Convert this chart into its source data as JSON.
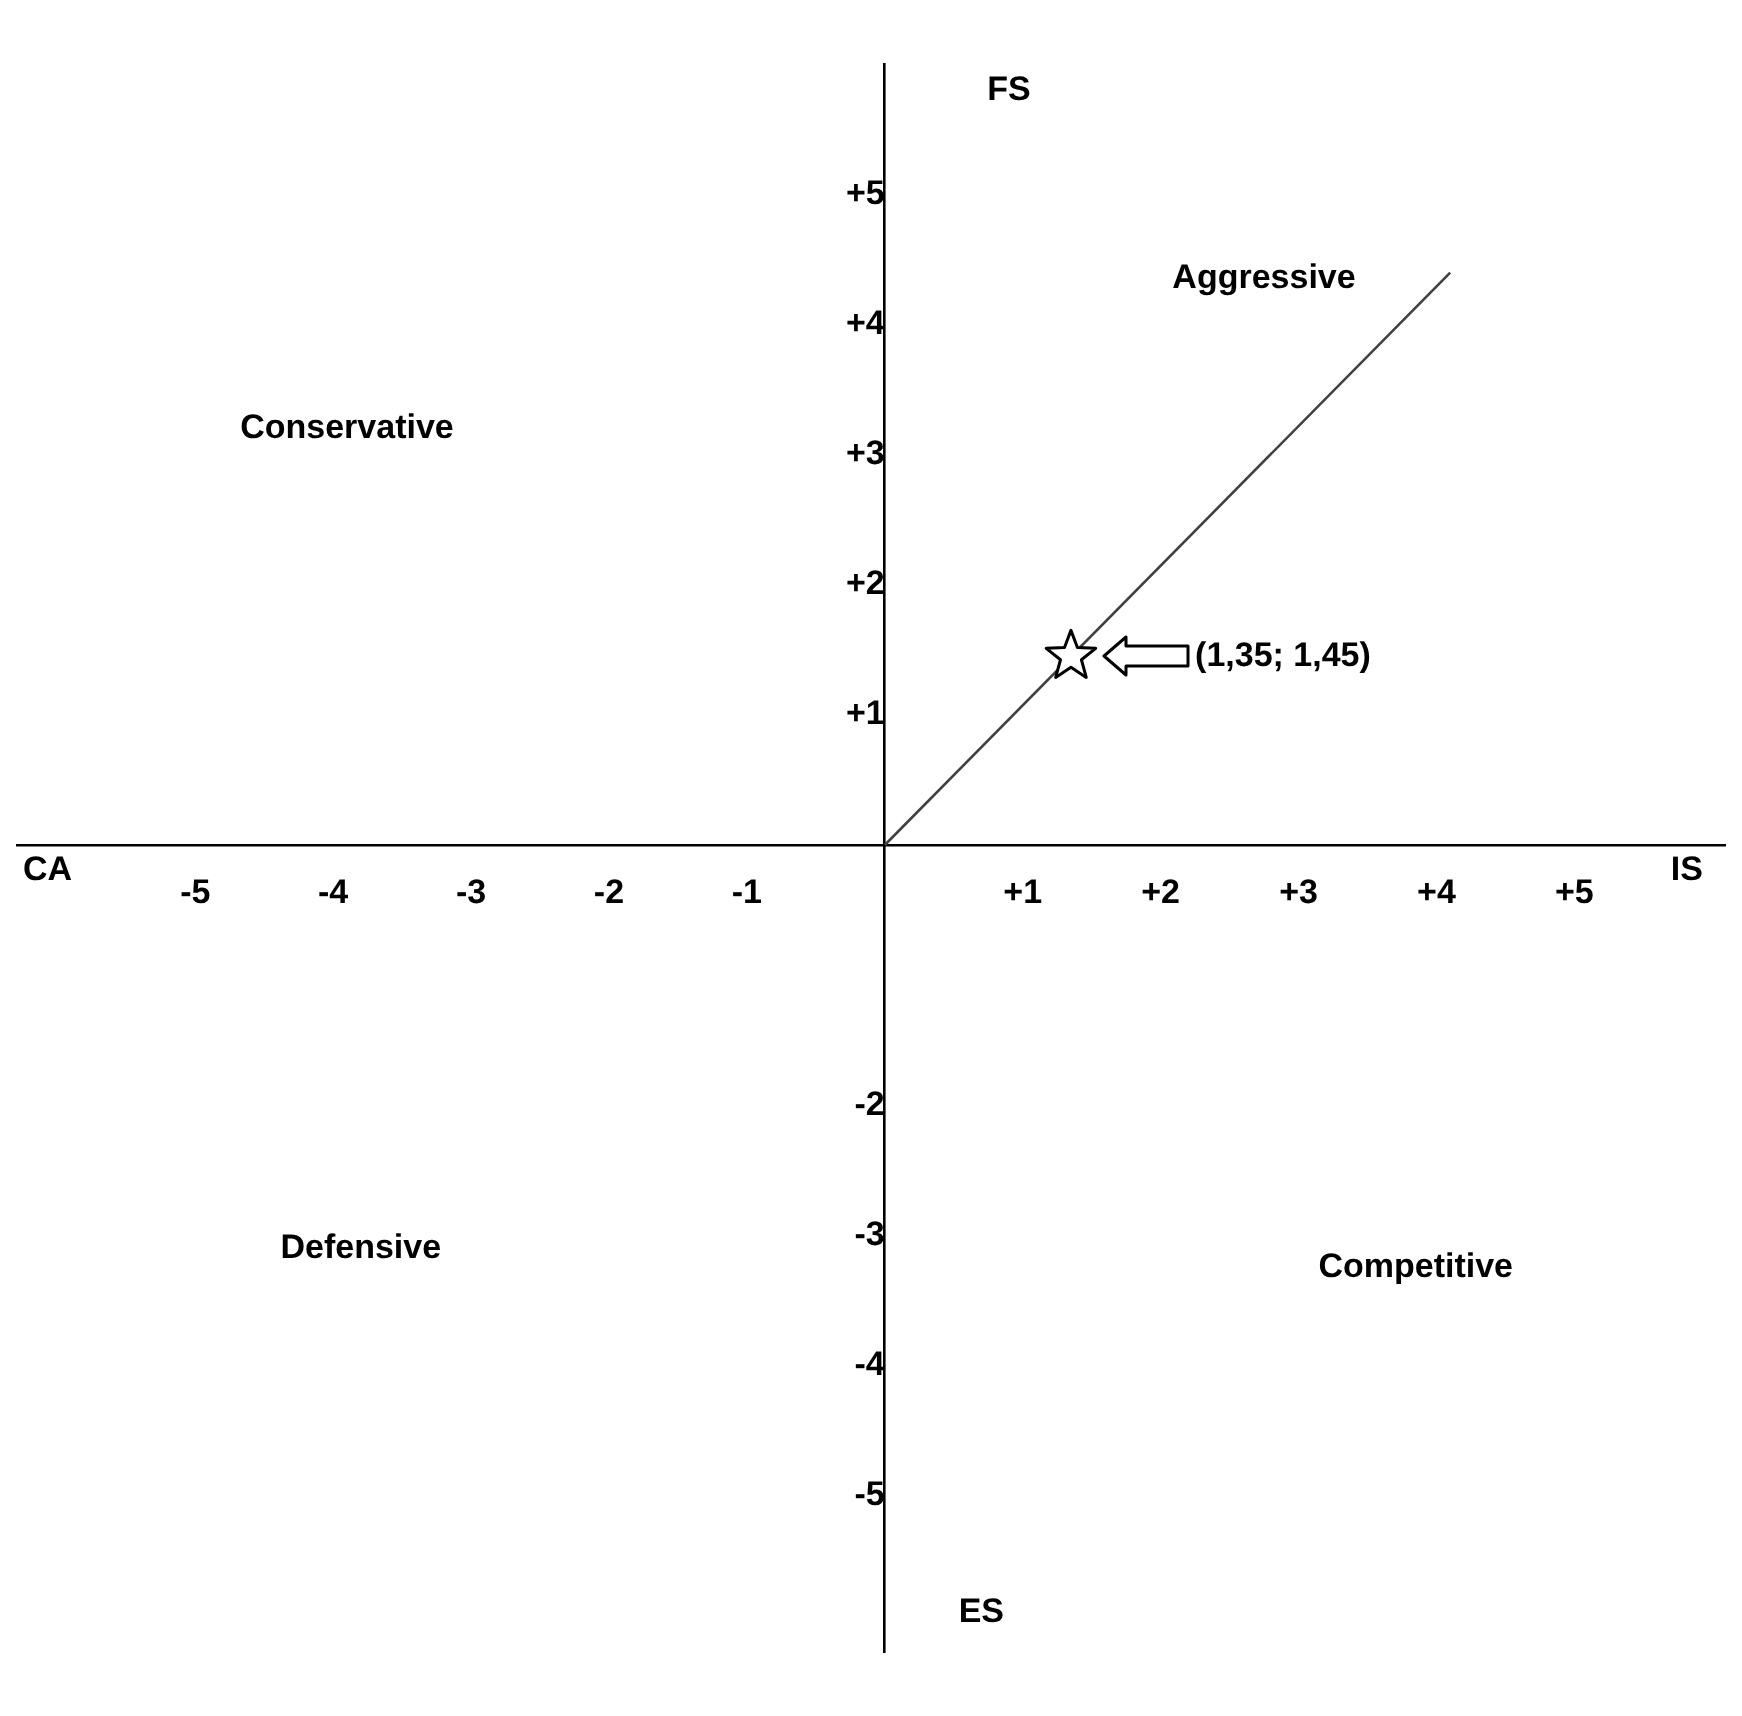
{
  "chart_data": {
    "type": "scatter",
    "xlim": [
      -6.3,
      6.1
    ],
    "ylim": [
      -6.2,
      6.0
    ],
    "xticks": [
      -5,
      -4,
      -3,
      -2,
      -1,
      {
        "value": 1,
        "label": "+1"
      },
      {
        "value": 2,
        "label": "+2"
      },
      {
        "value": 3,
        "label": "+3"
      },
      {
        "value": 4,
        "label": "+4"
      },
      {
        "value": 5,
        "label": "+5"
      }
    ],
    "yticks": [
      -5,
      -4,
      -3,
      -2,
      {
        "value": 1,
        "label": "+1"
      },
      {
        "value": 2,
        "label": "+2"
      },
      {
        "value": 3,
        "label": "+3"
      },
      {
        "value": 4,
        "label": "+4"
      },
      {
        "value": 5,
        "label": "+5"
      }
    ],
    "grid": false,
    "legend": false,
    "marker": "star",
    "series": [
      {
        "type": "line",
        "x": [
          0,
          4.1
        ],
        "values": [
          0,
          4.4
        ],
        "color": "#404040",
        "marker": "none"
      },
      {
        "type": "scatter",
        "x": [
          1.35
        ],
        "values": [
          1.45
        ],
        "color": "#000000"
      }
    ],
    "annotations": [
      "CA",
      "IS",
      "FS",
      "ES",
      "Conservative",
      "Aggressive",
      "Defensive",
      "Competitive",
      "(1,35; 1,45)"
    ]
  }
}
